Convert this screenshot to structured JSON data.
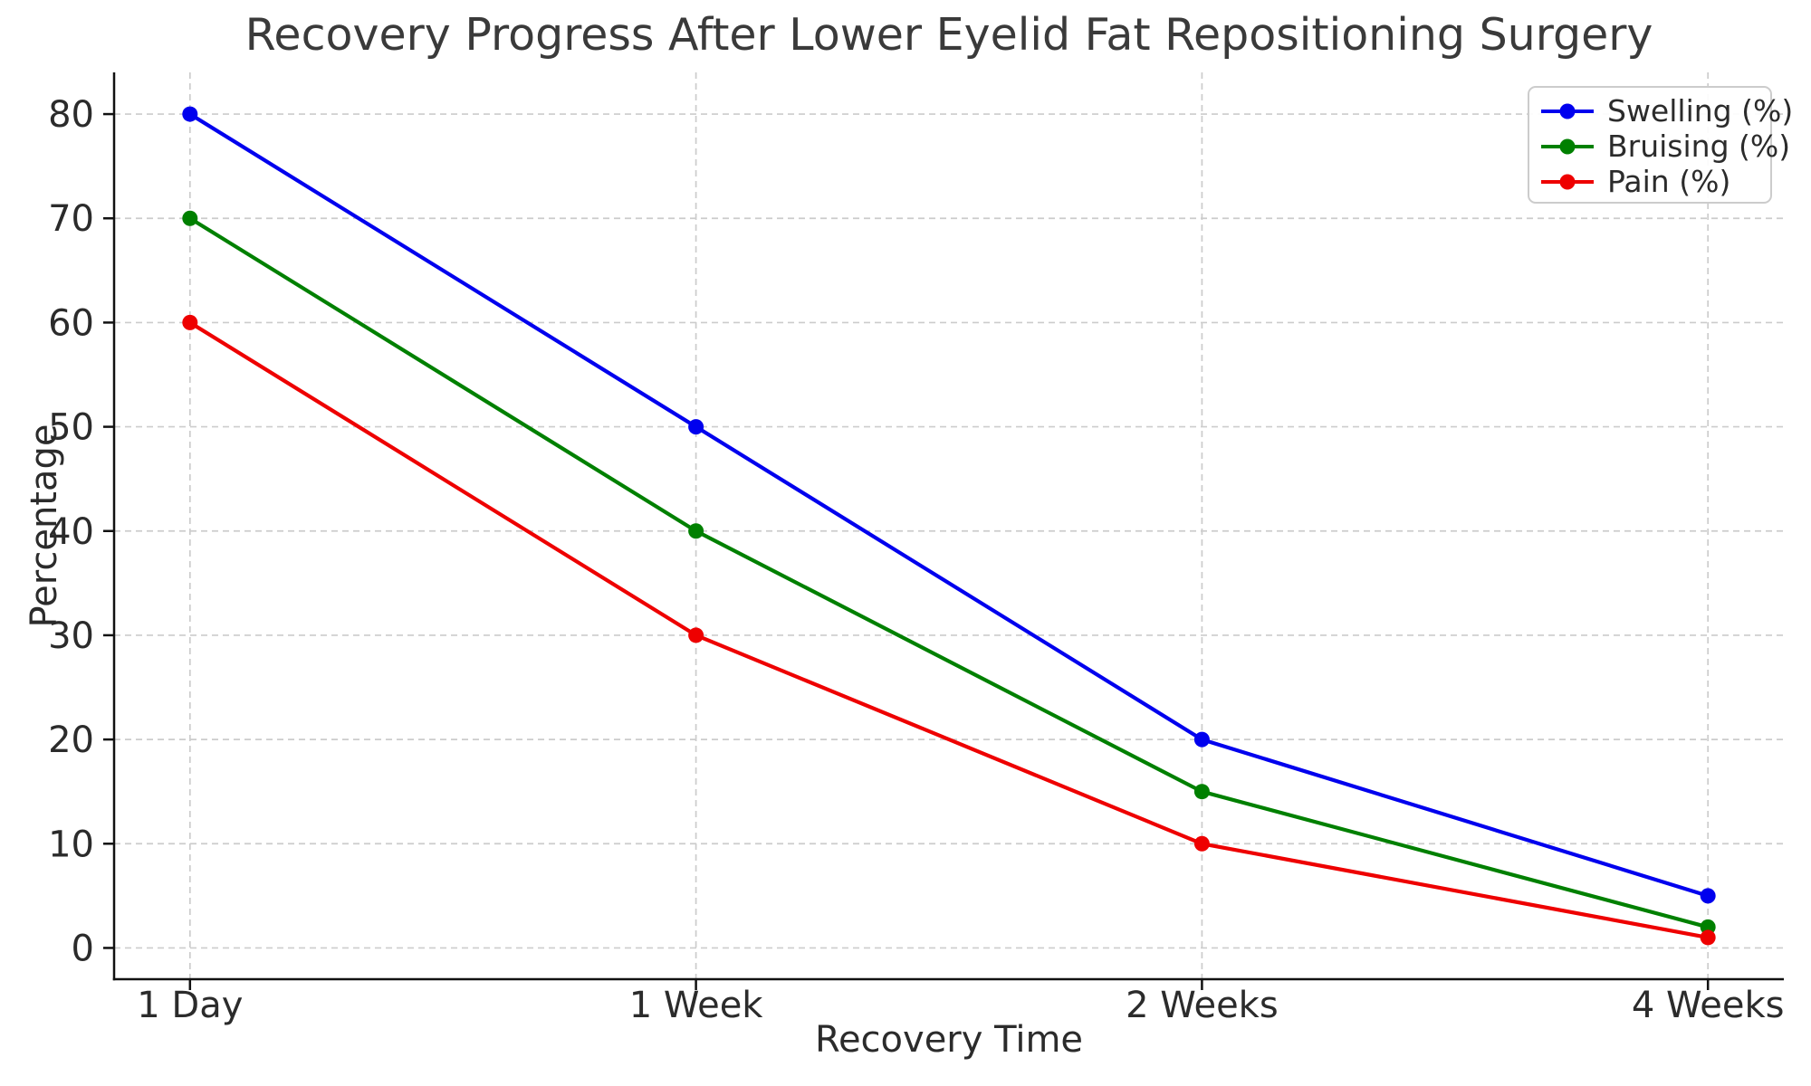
{
  "chart_data": {
    "type": "line",
    "title": "Recovery Progress After Lower Eyelid Fat Repositioning Surgery",
    "xlabel": "Recovery Time",
    "ylabel": "Percentage",
    "categories": [
      "1 Day",
      "1 Week",
      "2 Weeks",
      "4 Weeks"
    ],
    "series": [
      {
        "name": "Swelling (%)",
        "color": "#0000ee",
        "values": [
          80,
          50,
          20,
          5
        ]
      },
      {
        "name": "Bruising (%)",
        "color": "#008000",
        "values": [
          70,
          40,
          15,
          2
        ]
      },
      {
        "name": "Pain (%)",
        "color": "#ee0000",
        "values": [
          60,
          30,
          10,
          1
        ]
      }
    ],
    "yticks": [
      0,
      10,
      20,
      30,
      40,
      50,
      60,
      70,
      80
    ],
    "ylim": [
      -3,
      84
    ],
    "grid": "dashed gridlines on both axes",
    "legend_position": "upper right",
    "marker": "circle",
    "axis_color": "#111111",
    "grid_color": "#cccccc",
    "text_color": "#2b2b2b"
  }
}
